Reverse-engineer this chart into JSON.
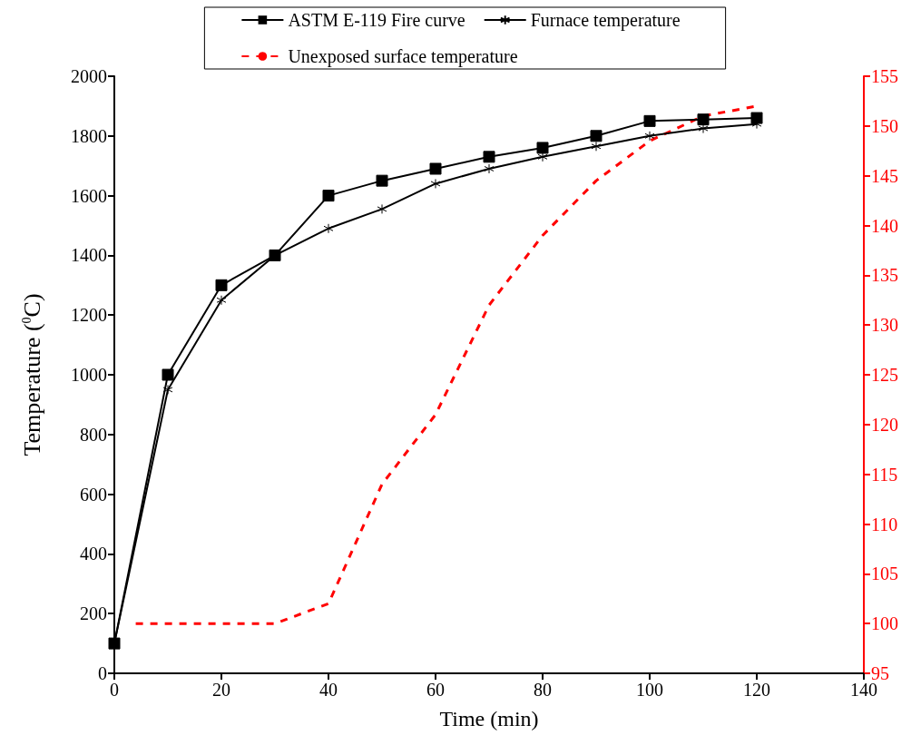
{
  "chart_data": {
    "type": "line",
    "xlabel": "Time (min)",
    "ylabel": "Temperature ($^{0}$C)",
    "x": [
      0,
      10,
      20,
      30,
      40,
      50,
      60,
      70,
      80,
      90,
      100,
      110,
      120
    ],
    "series": [
      {
        "name": "ASTM E-119 Fire curve",
        "color": "#000000",
        "marker": "square",
        "line_style": "solid",
        "values": [
          100,
          1000,
          1300,
          1400,
          1600,
          1650,
          1690,
          1730,
          1760,
          1800,
          1850,
          1855,
          1860
        ]
      },
      {
        "name": "Furnace temperature",
        "color": "#000000",
        "marker": "cross",
        "line_style": "solid",
        "values": [
          100,
          950,
          1250,
          1400,
          1490,
          1555,
          1640,
          1690,
          1730,
          1765,
          1800,
          1825,
          1840
        ]
      },
      {
        "name": "Unexposed surface temperature",
        "color": "#ff0000",
        "marker": "none",
        "line_style": "dashed",
        "axis": "y2",
        "x": [
          4,
          10,
          20,
          30,
          40,
          50,
          60,
          70,
          80,
          90,
          100,
          110,
          120
        ],
        "values": [
          100,
          100,
          100,
          100,
          102,
          114,
          121,
          132,
          139,
          144.5,
          148.5,
          151,
          152
        ]
      }
    ],
    "xlim": [
      0,
      140
    ],
    "xticks": [
      0,
      20,
      40,
      60,
      80,
      100,
      120,
      140
    ],
    "ylim": [
      0,
      2000
    ],
    "yticks": [
      0,
      200,
      400,
      600,
      800,
      1000,
      1200,
      1400,
      1600,
      1800,
      2000
    ],
    "y2lim": [
      95,
      155
    ],
    "y2ticks": [
      95,
      100,
      105,
      110,
      115,
      120,
      125,
      130,
      135,
      140,
      145,
      150,
      155
    ],
    "legend": "top",
    "grid": false
  }
}
